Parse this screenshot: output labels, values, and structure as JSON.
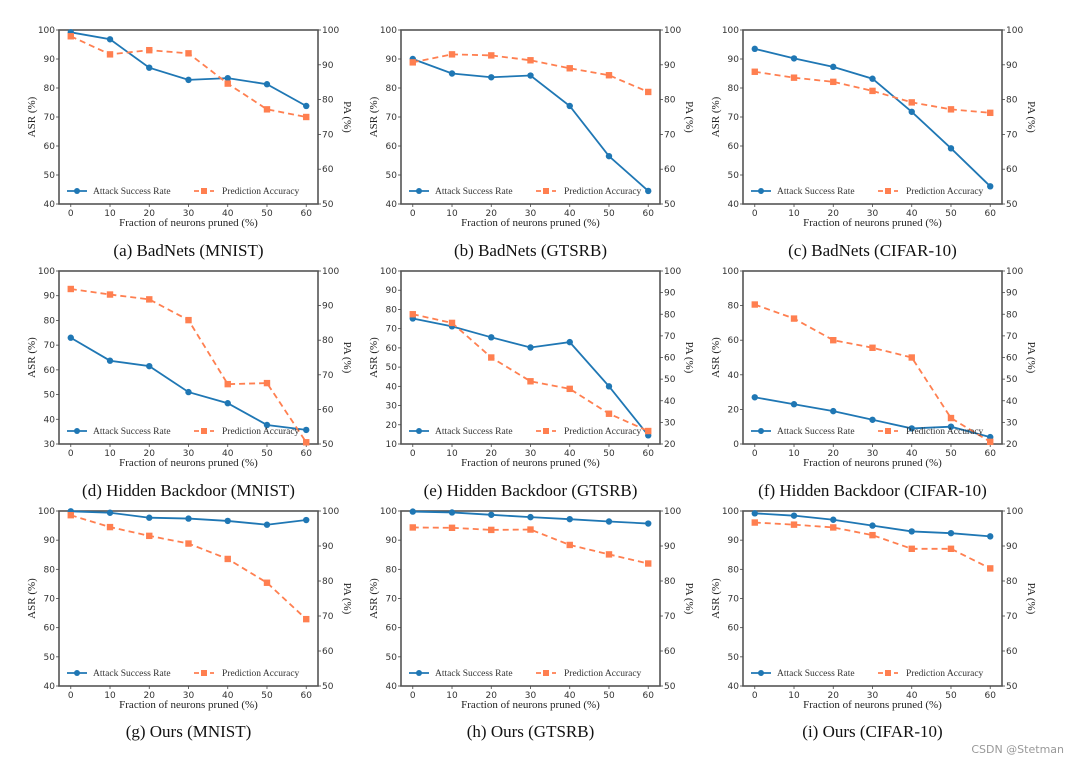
{
  "watermark": "CSDN @Stetman",
  "chart_data": [
    {
      "type": "line",
      "id": "a",
      "caption": "(a) BadNets (MNIST)",
      "x": [
        0,
        10,
        20,
        30,
        40,
        50,
        60
      ],
      "xlabel": "Fraction of neurons pruned (%)",
      "ylabel": "ASR (%)",
      "y2label": "PA (%)",
      "ylim": [
        40,
        100
      ],
      "yticks": [
        40,
        50,
        60,
        70,
        80,
        90,
        100
      ],
      "y2lim": [
        50,
        100
      ],
      "y2ticks": [
        50,
        60,
        70,
        80,
        90,
        100
      ],
      "series": [
        {
          "name": "Attack Success Rate",
          "axis": "left",
          "values": [
            99.2,
            96.8,
            87.0,
            82.8,
            83.4,
            81.3,
            73.8
          ]
        },
        {
          "name": "Prediction Accuracy",
          "axis": "right",
          "values": [
            98.2,
            93.0,
            94.2,
            93.3,
            84.6,
            77.2,
            75.0
          ]
        }
      ],
      "legend": "bottom"
    },
    {
      "type": "line",
      "id": "b",
      "caption": "(b) BadNets (GTSRB)",
      "x": [
        0,
        10,
        20,
        30,
        40,
        50,
        60
      ],
      "xlabel": "Fraction of neurons pruned (%)",
      "ylabel": "ASR (%)",
      "y2label": "PA (%)",
      "ylim": [
        40,
        100
      ],
      "yticks": [
        40,
        50,
        60,
        70,
        80,
        90,
        100
      ],
      "y2lim": [
        50,
        100
      ],
      "y2ticks": [
        50,
        60,
        70,
        80,
        90,
        100
      ],
      "series": [
        {
          "name": "Attack Success Rate",
          "axis": "left",
          "values": [
            90.0,
            85.0,
            83.7,
            84.3,
            73.8,
            56.5,
            44.5
          ]
        },
        {
          "name": "Prediction Accuracy",
          "axis": "right",
          "values": [
            90.7,
            93.0,
            92.7,
            91.3,
            89.0,
            87.0,
            82.2
          ]
        }
      ],
      "legend": "bottom"
    },
    {
      "type": "line",
      "id": "c",
      "caption": "(c) BadNets (CIFAR-10)",
      "x": [
        0,
        10,
        20,
        30,
        40,
        50,
        60
      ],
      "xlabel": "Fraction of neurons pruned (%)",
      "ylabel": "ASR (%)",
      "y2label": "PA (%)",
      "ylim": [
        40,
        100
      ],
      "yticks": [
        40,
        50,
        60,
        70,
        80,
        90,
        100
      ],
      "y2lim": [
        50,
        100
      ],
      "y2ticks": [
        50,
        60,
        70,
        80,
        90,
        100
      ],
      "series": [
        {
          "name": "Attack Success Rate",
          "axis": "left",
          "values": [
            93.5,
            90.2,
            87.3,
            83.2,
            71.8,
            59.2,
            46.1
          ]
        },
        {
          "name": "Prediction Accuracy",
          "axis": "right",
          "values": [
            88.0,
            86.3,
            85.1,
            82.5,
            79.2,
            77.2,
            76.2
          ]
        }
      ],
      "legend": "bottom"
    },
    {
      "type": "line",
      "id": "d",
      "caption": "(d) Hidden Backdoor (MNIST)",
      "x": [
        0,
        10,
        20,
        30,
        40,
        50,
        60
      ],
      "xlabel": "Fraction of neurons pruned (%)",
      "ylabel": "ASR (%)",
      "y2label": "PA (%)",
      "ylim": [
        30,
        100
      ],
      "yticks": [
        30,
        40,
        50,
        60,
        70,
        80,
        90,
        100
      ],
      "y2lim": [
        50,
        100
      ],
      "y2ticks": [
        50,
        60,
        70,
        80,
        90,
        100
      ],
      "series": [
        {
          "name": "Attack Success Rate",
          "axis": "left",
          "values": [
            73.0,
            63.7,
            61.5,
            51.0,
            46.5,
            37.7,
            35.7
          ]
        },
        {
          "name": "Prediction Accuracy",
          "axis": "right",
          "values": [
            94.8,
            93.2,
            91.8,
            85.8,
            67.3,
            67.6,
            50.5
          ]
        }
      ],
      "legend": "bottom"
    },
    {
      "type": "line",
      "id": "e",
      "caption": "(e) Hidden Backdoor (GTSRB)",
      "x": [
        0,
        10,
        20,
        30,
        40,
        50,
        60
      ],
      "xlabel": "Fraction of neurons pruned (%)",
      "ylabel": "ASR (%)",
      "y2label": "PA (%)",
      "ylim": [
        10,
        100
      ],
      "yticks": [
        10,
        20,
        30,
        40,
        50,
        60,
        70,
        80,
        90,
        100
      ],
      "y2lim": [
        20,
        100
      ],
      "y2ticks": [
        20,
        30,
        40,
        50,
        60,
        70,
        80,
        90,
        100
      ],
      "series": [
        {
          "name": "Attack Success Rate",
          "axis": "left",
          "values": [
            75.3,
            71.2,
            65.5,
            60.2,
            63.0,
            40.0,
            14.5
          ]
        },
        {
          "name": "Prediction Accuracy",
          "axis": "right",
          "values": [
            80.0,
            76.0,
            60.0,
            49.0,
            45.5,
            34.0,
            26.0
          ]
        }
      ],
      "legend": "bottom"
    },
    {
      "type": "line",
      "id": "f",
      "caption": "(f) Hidden Backdoor (CIFAR-10)",
      "x": [
        0,
        10,
        20,
        30,
        40,
        50,
        60
      ],
      "xlabel": "Fraction of neurons pruned (%)",
      "ylabel": "ASR (%)",
      "y2label": "PA (%)",
      "ylim": [
        0,
        100
      ],
      "yticks": [
        0,
        20,
        40,
        60,
        80,
        100
      ],
      "y2lim": [
        20,
        100
      ],
      "y2ticks": [
        20,
        30,
        40,
        50,
        60,
        70,
        80,
        90,
        100
      ],
      "series": [
        {
          "name": "Attack Success Rate",
          "axis": "left",
          "values": [
            27.0,
            23.0,
            19.0,
            14.0,
            9.0,
            10.0,
            4.0
          ]
        },
        {
          "name": "Prediction Accuracy",
          "axis": "right",
          "values": [
            84.5,
            78.0,
            68.0,
            64.5,
            60.0,
            32.0,
            21.0
          ]
        }
      ],
      "legend": "bottom"
    },
    {
      "type": "line",
      "id": "g",
      "caption": "(g) Ours (MNIST)",
      "x": [
        0,
        10,
        20,
        30,
        40,
        50,
        60
      ],
      "xlabel": "Fraction of neurons pruned (%)",
      "ylabel": "ASR (%)",
      "y2label": "PA (%)",
      "ylim": [
        40,
        100
      ],
      "yticks": [
        40,
        50,
        60,
        70,
        80,
        90,
        100
      ],
      "y2lim": [
        50,
        100
      ],
      "y2ticks": [
        50,
        60,
        70,
        80,
        90,
        100
      ],
      "series": [
        {
          "name": "Attack Success Rate",
          "axis": "left",
          "values": [
            99.9,
            99.4,
            97.7,
            97.4,
            96.6,
            95.3,
            96.9
          ]
        },
        {
          "name": "Prediction Accuracy",
          "axis": "right",
          "values": [
            98.8,
            95.4,
            92.9,
            90.7,
            86.3,
            79.5,
            69.1
          ]
        }
      ],
      "legend": "bottom"
    },
    {
      "type": "line",
      "id": "h",
      "caption": "(h) Ours (GTSRB)",
      "x": [
        0,
        10,
        20,
        30,
        40,
        50,
        60
      ],
      "xlabel": "Fraction of neurons pruned (%)",
      "ylabel": "ASR (%)",
      "y2label": "PA (%)",
      "ylim": [
        40,
        100
      ],
      "yticks": [
        40,
        50,
        60,
        70,
        80,
        90,
        100
      ],
      "y2lim": [
        50,
        100
      ],
      "y2ticks": [
        50,
        60,
        70,
        80,
        90,
        100
      ],
      "series": [
        {
          "name": "Attack Success Rate",
          "axis": "left",
          "values": [
            99.8,
            99.5,
            98.7,
            97.9,
            97.2,
            96.4,
            95.7
          ]
        },
        {
          "name": "Prediction Accuracy",
          "axis": "right",
          "values": [
            95.3,
            95.2,
            94.6,
            94.7,
            90.3,
            87.6,
            85.0
          ]
        }
      ],
      "legend": "bottom"
    },
    {
      "type": "line",
      "id": "i",
      "caption": "(i) Ours (CIFAR-10)",
      "x": [
        0,
        10,
        20,
        30,
        40,
        50,
        60
      ],
      "xlabel": "Fraction of neurons pruned (%)",
      "ylabel": "ASR (%)",
      "y2label": "PA (%)",
      "ylim": [
        40,
        100
      ],
      "yticks": [
        40,
        50,
        60,
        70,
        80,
        90,
        100
      ],
      "y2lim": [
        50,
        100
      ],
      "y2ticks": [
        50,
        60,
        70,
        80,
        90,
        100
      ],
      "series": [
        {
          "name": "Attack Success Rate",
          "axis": "left",
          "values": [
            99.2,
            98.4,
            97.0,
            95.0,
            93.0,
            92.4,
            91.3
          ]
        },
        {
          "name": "Prediction Accuracy",
          "axis": "right",
          "values": [
            96.7,
            96.1,
            95.3,
            93.1,
            89.2,
            89.2,
            83.6
          ]
        }
      ],
      "legend": "bottom"
    }
  ],
  "colors": {
    "asr": "#1f77b4",
    "pa": "#ff7f50",
    "frame": "#555555"
  }
}
